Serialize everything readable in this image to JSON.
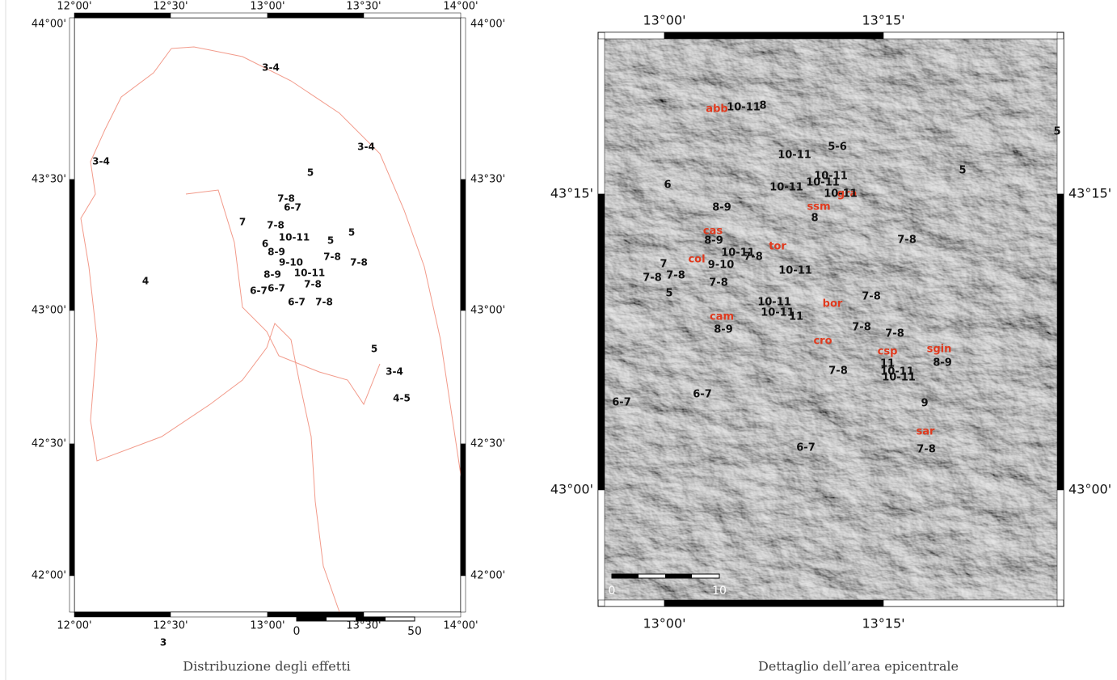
{
  "left_map": {
    "x_labels": [
      "12°00'",
      "12°30'",
      "13°00'",
      "13°30'",
      "14°00'"
    ],
    "y_labels": [
      "44°00'",
      "43°30'",
      "43°00'",
      "42°30'",
      "42°00'"
    ],
    "labels": [
      "3-4",
      "3-4",
      "3-4",
      "5",
      "7-8",
      "6-7",
      "7",
      "7-8",
      "5",
      "5",
      "6",
      "10-11",
      "8-9",
      "9-10",
      "10-11",
      "8-9",
      "7-8",
      "7-8",
      "7-8",
      "4",
      "6-7",
      "6-7",
      "6-7",
      "7-8",
      "5",
      "3-4",
      "4-5",
      "3"
    ],
    "scale": [
      "0",
      "50"
    ]
  },
  "right_map": {
    "x_labels": [
      "13°00'",
      "13°15'"
    ],
    "y_labels": [
      "43°15'",
      "43°00'"
    ],
    "localities": [
      "abb",
      "cas",
      "tor",
      "col",
      "cam",
      "bor",
      "cro",
      "csp",
      "sgin",
      "sar",
      "gra",
      "ssm"
    ],
    "intensities": [
      "10-11",
      "8",
      "10-11",
      "5-6",
      "10-11",
      "10-11",
      "10-11",
      "10-11",
      "8",
      "6",
      "8-9",
      "8-9",
      "10-11",
      "7-8",
      "9-10",
      "7",
      "7-8",
      "7-8",
      "5",
      "7-8",
      "10-11",
      "10-11",
      "10-11",
      "11",
      "8-9",
      "7-8",
      "7-8",
      "7-8",
      "7-8",
      "11",
      "10-11",
      "10-11",
      "8-9",
      "7-8",
      "6-7",
      "6-7",
      "9",
      "7-8",
      "6-7",
      "5",
      "5"
    ],
    "scale": [
      "0",
      "10"
    ]
  },
  "captions": [
    "Distribuzione degli effetti",
    "Dettaglio dell’area epicentrale"
  ]
}
